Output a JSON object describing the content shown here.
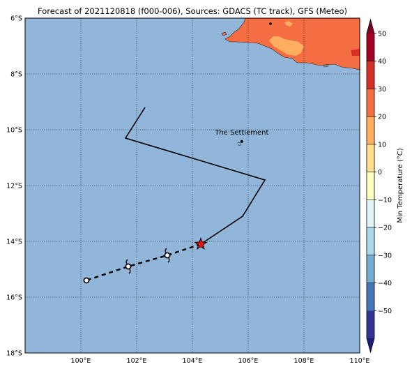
{
  "title": "Forecast of 2021120818 (f000-006), Sources: GDACS (TC track), GFS (Meteo)",
  "map": {
    "lon_range": [
      98,
      110
    ],
    "lat_range": [
      -18,
      -6
    ],
    "lon_ticks": [
      {
        "value": 100,
        "label": "100°E"
      },
      {
        "value": 102,
        "label": "102°E"
      },
      {
        "value": 104,
        "label": "104°E"
      },
      {
        "value": 106,
        "label": "106°E"
      },
      {
        "value": 108,
        "label": "108°E"
      },
      {
        "value": 110,
        "label": "110°E"
      }
    ],
    "lat_ticks": [
      {
        "value": -6,
        "label": "6°S"
      },
      {
        "value": -8,
        "label": "8°S"
      },
      {
        "value": -10,
        "label": "10°S"
      },
      {
        "value": -12,
        "label": "12°S"
      },
      {
        "value": -14,
        "label": "14°S"
      },
      {
        "value": -16,
        "label": "16°S"
      },
      {
        "value": -18,
        "label": "18°S"
      }
    ],
    "grid": true,
    "ocean_color": "#92b6d9",
    "land_color": "#f46d43",
    "land_warm_color": "#fdae61"
  },
  "past_track": [
    [
      102.3,
      -9.2
    ],
    [
      101.6,
      -10.3
    ],
    [
      106.6,
      -11.8
    ],
    [
      105.8,
      -13.1
    ],
    [
      104.3,
      -14.1
    ]
  ],
  "forecast_track": [
    [
      104.3,
      -14.1
    ],
    [
      103.1,
      -14.5
    ],
    [
      101.7,
      -14.9
    ],
    [
      100.2,
      -15.4
    ]
  ],
  "current_position": [
    104.3,
    -14.1
  ],
  "forecast_symbols": [
    {
      "lon": 103.1,
      "lat": -14.5,
      "type": "cyclone-symbol"
    },
    {
      "lon": 101.7,
      "lat": -14.9,
      "type": "cyclone-symbol"
    },
    {
      "lon": 100.2,
      "lat": -15.4,
      "type": "open-circle"
    }
  ],
  "places": [
    {
      "name": "The Settlement",
      "lon": 105.77,
      "lat": -10.42
    }
  ],
  "colorbar": {
    "label": "Min Temperature (°C)",
    "levels": [
      -50,
      -40,
      -30,
      -20,
      -10,
      0,
      10,
      20,
      30,
      40,
      50
    ],
    "tick_labels": [
      "50",
      "40",
      "30",
      "20",
      "10",
      "0",
      "−10",
      "−20",
      "−30",
      "−40",
      "−50"
    ],
    "colors": [
      "#313695",
      "#4575b4",
      "#74add1",
      "#abd9e9",
      "#e0f3f8",
      "#ffffbf",
      "#fee090",
      "#fdae61",
      "#f46d43",
      "#d73027",
      "#a50026"
    ],
    "under_color": "#1c1f7a",
    "over_color": "#7f0022"
  }
}
